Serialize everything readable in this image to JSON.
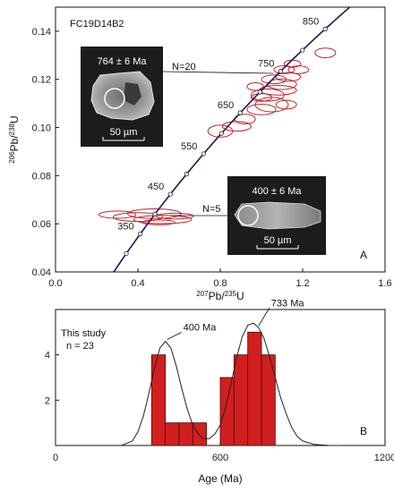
{
  "chart_data": [
    {
      "type": "scatter",
      "sample": "FC19D14B2",
      "panel_letter": "A",
      "xlabel": "207Pb/235U",
      "ylabel": "206Pb/238U",
      "xlim": [
        0.0,
        1.6
      ],
      "ylim": [
        0.04,
        0.15
      ],
      "x_ticks": [
        0.0,
        0.4,
        0.8,
        1.2,
        1.6
      ],
      "y_ticks": [
        0.04,
        0.06,
        0.08,
        0.1,
        0.12,
        0.14
      ],
      "concordia_ages_ma": [
        350,
        450,
        550,
        650,
        750,
        850
      ],
      "concordia_ages_marked": [
        300,
        350,
        400,
        450,
        500,
        550,
        600,
        650,
        700,
        750,
        800,
        850
      ],
      "ellipses": [
        {
          "x": 0.3,
          "y": 0.0638,
          "rx": 0.09,
          "ry": 0.0015
        },
        {
          "x": 0.4,
          "y": 0.0628,
          "rx": 0.12,
          "ry": 0.0018
        },
        {
          "x": 0.48,
          "y": 0.0642,
          "rx": 0.13,
          "ry": 0.002
        },
        {
          "x": 0.52,
          "y": 0.0618,
          "rx": 0.14,
          "ry": 0.0017
        },
        {
          "x": 0.58,
          "y": 0.0632,
          "rx": 0.09,
          "ry": 0.0012
        },
        {
          "x": 0.5,
          "y": 0.0606,
          "rx": 0.08,
          "ry": 0.001
        },
        {
          "x": 0.8,
          "y": 0.0985,
          "rx": 0.06,
          "ry": 0.0025
        },
        {
          "x": 0.88,
          "y": 0.1005,
          "rx": 0.07,
          "ry": 0.002
        },
        {
          "x": 0.92,
          "y": 0.1035,
          "rx": 0.05,
          "ry": 0.002
        },
        {
          "x": 1.0,
          "y": 0.1075,
          "rx": 0.07,
          "ry": 0.0022
        },
        {
          "x": 1.05,
          "y": 0.1095,
          "rx": 0.08,
          "ry": 0.003
        },
        {
          "x": 1.03,
          "y": 0.1135,
          "rx": 0.08,
          "ry": 0.0025
        },
        {
          "x": 1.08,
          "y": 0.1155,
          "rx": 0.09,
          "ry": 0.002
        },
        {
          "x": 1.1,
          "y": 0.118,
          "rx": 0.07,
          "ry": 0.0022
        },
        {
          "x": 1.06,
          "y": 0.12,
          "rx": 0.06,
          "ry": 0.0018
        },
        {
          "x": 1.13,
          "y": 0.121,
          "rx": 0.06,
          "ry": 0.0018
        },
        {
          "x": 1.11,
          "y": 0.124,
          "rx": 0.05,
          "ry": 0.0016
        },
        {
          "x": 1.15,
          "y": 0.1265,
          "rx": 0.04,
          "ry": 0.0015
        },
        {
          "x": 1.18,
          "y": 0.124,
          "rx": 0.05,
          "ry": 0.0016
        },
        {
          "x": 1.31,
          "y": 0.131,
          "rx": 0.05,
          "ry": 0.002
        },
        {
          "x": 1.0,
          "y": 0.1125,
          "rx": 0.05,
          "ry": 0.0016
        },
        {
          "x": 1.12,
          "y": 0.1095,
          "rx": 0.05,
          "ry": 0.0018
        },
        {
          "x": 0.97,
          "y": 0.117,
          "rx": 0.04,
          "ry": 0.0016
        }
      ],
      "inset_old": {
        "label": "764 ± 6 Ma",
        "scale": "50 µm",
        "count": "N=20"
      },
      "inset_young": {
        "label": "400 ± 6 Ma",
        "scale": "50 µm",
        "count": "N=5"
      }
    },
    {
      "type": "bar",
      "panel_letter": "B",
      "xlabel": "Age (Ma)",
      "ylabel": "",
      "xlim": [
        0,
        1200
      ],
      "ylim": [
        0,
        6
      ],
      "x_ticks": [
        0,
        600,
        1200
      ],
      "y_ticks": [
        2,
        4
      ],
      "bin_width_ma": 50,
      "bins": [
        {
          "start": 350,
          "count": 4
        },
        {
          "start": 400,
          "count": 1
        },
        {
          "start": 450,
          "count": 1
        },
        {
          "start": 500,
          "count": 1
        },
        {
          "start": 600,
          "count": 3
        },
        {
          "start": 650,
          "count": 4
        },
        {
          "start": 700,
          "count": 5
        },
        {
          "start": 750,
          "count": 4
        }
      ],
      "legend_line1": "This study",
      "legend_line2": "n = 23",
      "peaks": [
        {
          "age": 400,
          "label": "400 Ma"
        },
        {
          "age": 733,
          "label": "733 Ma"
        }
      ],
      "curve": [
        [
          240,
          0.0
        ],
        [
          280,
          0.2
        ],
        [
          300,
          0.6
        ],
        [
          320,
          1.3
        ],
        [
          340,
          2.3
        ],
        [
          360,
          3.4
        ],
        [
          380,
          4.3
        ],
        [
          400,
          4.6
        ],
        [
          420,
          4.3
        ],
        [
          440,
          3.5
        ],
        [
          460,
          2.5
        ],
        [
          480,
          1.6
        ],
        [
          500,
          0.9
        ],
        [
          520,
          0.5
        ],
        [
          540,
          0.3
        ],
        [
          560,
          0.3
        ],
        [
          580,
          0.5
        ],
        [
          600,
          0.9
        ],
        [
          620,
          1.7
        ],
        [
          640,
          2.8
        ],
        [
          660,
          3.9
        ],
        [
          680,
          4.8
        ],
        [
          700,
          5.3
        ],
        [
          720,
          5.4
        ],
        [
          740,
          5.2
        ],
        [
          760,
          4.7
        ],
        [
          780,
          3.9
        ],
        [
          800,
          3.0
        ],
        [
          820,
          2.1
        ],
        [
          840,
          1.4
        ],
        [
          860,
          0.8
        ],
        [
          880,
          0.4
        ],
        [
          900,
          0.2
        ],
        [
          940,
          0.05
        ],
        [
          1000,
          0.0
        ],
        [
          1040,
          0.0
        ]
      ]
    }
  ]
}
